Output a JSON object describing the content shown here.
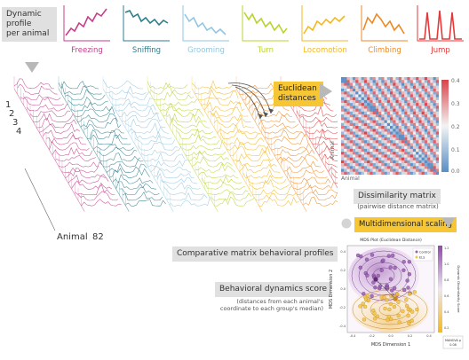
{
  "header_tag": {
    "line1": "Dynamic",
    "line2": "profile",
    "line3": "per animal"
  },
  "behaviors": [
    {
      "name": "Freezing",
      "color": "#c2418c"
    },
    {
      "name": "Sniffing",
      "color": "#2d7d8c"
    },
    {
      "name": "Grooming",
      "color": "#93c6e0"
    },
    {
      "name": "Turn",
      "color": "#b8d432"
    },
    {
      "name": "Locomotion",
      "color": "#f2b824"
    },
    {
      "name": "Climbing",
      "color": "#ee8a24"
    },
    {
      "name": "Jump",
      "color": "#e23a3a"
    }
  ],
  "animal_ids": [
    "1",
    "2",
    "3",
    "4"
  ],
  "animal_label": "Animal",
  "animal_last": "82",
  "euclid": {
    "line1": "Euclidean",
    "line2": "distances"
  },
  "heatmap": {
    "scale_ticks": [
      "0.4",
      "0.3",
      "0.2",
      "0.1",
      "0.0"
    ],
    "y_label": "Animal",
    "x_label": "Animal",
    "colors": {
      "low": "#5a8ec4",
      "mid": "#f3f3f3",
      "high": "#d9434a"
    }
  },
  "dissimilarity": {
    "title": "Dissimilarity matrix",
    "subtitle": "(pairwise distance matrix)"
  },
  "mds_tag": "Multidimensional scaling",
  "comparative_label": "Comparative matrix behavioral profiles",
  "dynamics": {
    "title": "Behavioral dynamics score",
    "line1": "(distances from each animal's",
    "line2": "coordinate to each group's median)"
  },
  "mds_plot": {
    "title": "MDS Plot (Euclidean Distance)",
    "xlabel": "MDS Dimension 1",
    "ylabel": "MDS Dimension 2",
    "colorbar_label": "Dynamic Dissimilarity Score",
    "legend": [
      "Control",
      "ELS"
    ],
    "x_ticks": [
      "-0.4",
      "-0.2",
      "0.0",
      "0.2",
      "0.4"
    ],
    "y_ticks": [
      "0.4",
      "0.2",
      "0.0",
      "-0.2",
      "-0.4"
    ],
    "cb_ticks": [
      "1.2",
      "1.0",
      "0.8",
      "0.6",
      "0.4",
      "0.2"
    ],
    "stat_line1": "MANOVA p",
    "stat_line2": "0.08",
    "colors": {
      "control": "#9a5fb3",
      "els": "#f2c24a"
    }
  }
}
